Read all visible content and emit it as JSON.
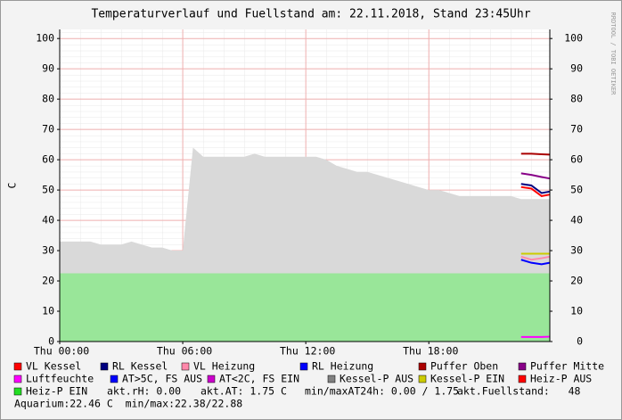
{
  "chart_data": {
    "type": "line",
    "title": "Temperaturverlauf und Fuellstand am: 22.11.2018, Stand 23:45Uhr",
    "y_label": "C",
    "watermark": "RRDTOOL / TOBI OETIKER",
    "x": [
      0,
      0.5,
      1,
      1.5,
      2,
      2.5,
      3,
      3.5,
      4,
      4.5,
      5,
      5.5,
      6,
      6.5,
      7,
      7.5,
      8,
      8.5,
      9,
      9.5,
      10,
      10.5,
      11,
      11.5,
      12,
      12.5,
      13,
      13.5,
      14,
      14.5,
      15,
      15.5,
      16,
      16.5,
      17,
      17.5,
      18,
      18.5,
      19,
      19.5,
      20,
      20.5,
      21,
      21.5,
      22,
      22.5,
      23,
      23.5,
      23.9
    ],
    "xlim": [
      0,
      23.9
    ],
    "xticks": [
      {
        "value": 0,
        "label": "Thu 00:00"
      },
      {
        "value": 6,
        "label": "Thu 06:00"
      },
      {
        "value": 12,
        "label": "Thu 12:00"
      },
      {
        "value": 18,
        "label": "Thu 18:00"
      }
    ],
    "ylim": [
      0,
      103
    ],
    "yticks": [
      0,
      10,
      20,
      30,
      40,
      50,
      60,
      70,
      80,
      90,
      100
    ],
    "y2lim": [
      0,
      103
    ],
    "y2ticks": [
      0,
      10,
      20,
      30,
      40,
      50,
      60,
      70,
      80,
      90,
      100
    ],
    "grid": true,
    "series": [
      {
        "name": "VL Kessel",
        "color": "#ff0000",
        "values": [
          null,
          null,
          null,
          null,
          null,
          null,
          null,
          null,
          null,
          null,
          null,
          null,
          null,
          null,
          null,
          null,
          null,
          null,
          null,
          null,
          null,
          null,
          null,
          null,
          null,
          null,
          null,
          null,
          null,
          null,
          null,
          null,
          null,
          null,
          null,
          null,
          null,
          null,
          null,
          null,
          null,
          null,
          null,
          null,
          null,
          51,
          50.5,
          48,
          48.5
        ]
      },
      {
        "name": "RL Kessel",
        "color": "#000080",
        "values": [
          null,
          null,
          null,
          null,
          null,
          null,
          null,
          null,
          null,
          null,
          null,
          null,
          null,
          null,
          null,
          null,
          null,
          null,
          null,
          null,
          null,
          null,
          null,
          null,
          null,
          null,
          null,
          null,
          null,
          null,
          null,
          null,
          null,
          null,
          null,
          null,
          null,
          null,
          null,
          null,
          null,
          null,
          null,
          null,
          null,
          52,
          51.5,
          49,
          49.5
        ]
      },
      {
        "name": "VL Heizung",
        "color": "#ff88aa",
        "values": [
          null,
          null,
          null,
          null,
          null,
          null,
          null,
          null,
          null,
          null,
          null,
          null,
          null,
          null,
          null,
          null,
          null,
          null,
          null,
          null,
          null,
          null,
          null,
          null,
          null,
          null,
          null,
          null,
          null,
          null,
          null,
          null,
          null,
          null,
          null,
          null,
          null,
          null,
          null,
          null,
          null,
          null,
          null,
          null,
          null,
          28,
          27,
          27.5,
          28
        ]
      },
      {
        "name": "RL Heizung",
        "color": "#0000ff",
        "values": [
          null,
          null,
          null,
          null,
          null,
          null,
          null,
          null,
          null,
          null,
          null,
          null,
          null,
          null,
          null,
          null,
          null,
          null,
          null,
          null,
          null,
          null,
          null,
          null,
          null,
          null,
          null,
          null,
          null,
          null,
          null,
          null,
          null,
          null,
          null,
          null,
          null,
          null,
          null,
          null,
          null,
          null,
          null,
          null,
          null,
          27,
          26,
          25.5,
          26
        ]
      },
      {
        "name": "Puffer Oben",
        "color": "#aa0000",
        "values": [
          null,
          null,
          null,
          null,
          null,
          null,
          null,
          null,
          null,
          null,
          null,
          null,
          null,
          null,
          null,
          null,
          null,
          null,
          null,
          null,
          null,
          null,
          null,
          null,
          null,
          null,
          null,
          null,
          null,
          null,
          null,
          null,
          null,
          null,
          null,
          null,
          null,
          null,
          null,
          null,
          null,
          null,
          null,
          null,
          null,
          62,
          62,
          61.8,
          61.7
        ]
      },
      {
        "name": "Puffer Mitte",
        "color": "#880088",
        "values": [
          null,
          null,
          null,
          null,
          null,
          null,
          null,
          null,
          null,
          null,
          null,
          null,
          null,
          null,
          null,
          null,
          null,
          null,
          null,
          null,
          null,
          null,
          null,
          null,
          null,
          null,
          null,
          null,
          null,
          null,
          null,
          null,
          null,
          null,
          null,
          null,
          null,
          null,
          null,
          null,
          null,
          null,
          null,
          null,
          null,
          55.5,
          55,
          54.3,
          53.8
        ]
      },
      {
        "name": "Luftfeuchte",
        "color": "#ff00ff",
        "values": [
          null,
          null,
          null,
          null,
          null,
          null,
          null,
          null,
          null,
          null,
          null,
          null,
          null,
          null,
          null,
          null,
          null,
          null,
          null,
          null,
          null,
          null,
          null,
          null,
          null,
          null,
          null,
          null,
          null,
          null,
          null,
          null,
          null,
          null,
          null,
          null,
          null,
          null,
          null,
          null,
          null,
          null,
          null,
          null,
          null,
          1.5,
          1.5,
          1.5,
          1.6
        ]
      },
      {
        "name": "AT>5C, FS AUS",
        "color": "#0000ff"
      },
      {
        "name": "AT<2C, FS EIN",
        "color": "#cc00cc"
      },
      {
        "name": "Kessel-P AUS",
        "color": "#808080",
        "style": "area",
        "fill": "#d9d9d9",
        "values": [
          33,
          33,
          33,
          33,
          32,
          32,
          32,
          33,
          32,
          31,
          31,
          30,
          30,
          64,
          61,
          61,
          61,
          61,
          61,
          62,
          61,
          61,
          61,
          61,
          61,
          61,
          60,
          58,
          57,
          56,
          56,
          55,
          54,
          53,
          52,
          51,
          50,
          50,
          49,
          48,
          48,
          48,
          48,
          48,
          48,
          47,
          47,
          47,
          47
        ]
      },
      {
        "name": "Kessel-P EIN",
        "color": "#cccc00",
        "values": [
          null,
          null,
          null,
          null,
          null,
          null,
          null,
          null,
          null,
          null,
          null,
          null,
          null,
          null,
          null,
          null,
          null,
          null,
          null,
          null,
          null,
          null,
          null,
          null,
          null,
          null,
          null,
          null,
          null,
          null,
          null,
          null,
          null,
          null,
          null,
          null,
          null,
          null,
          null,
          null,
          null,
          null,
          null,
          null,
          null,
          29,
          29,
          29,
          29
        ]
      },
      {
        "name": "Heiz-P AUS",
        "color": "#ff0000"
      },
      {
        "name": "Heiz-P EIN",
        "color": "#22dd22",
        "style": "area",
        "fill": "#99e699",
        "values": [
          22.5,
          22.5,
          22.5,
          22.5,
          22.5,
          22.5,
          22.5,
          22.5,
          22.5,
          22.5,
          22.5,
          22.5,
          22.5,
          22.5,
          22.5,
          22.5,
          22.5,
          22.5,
          22.5,
          22.5,
          22.5,
          22.5,
          22.5,
          22.5,
          22.5,
          22.5,
          22.5,
          22.5,
          22.5,
          22.5,
          22.5,
          22.5,
          22.5,
          22.5,
          22.5,
          22.5,
          22.5,
          22.5,
          22.5,
          22.5,
          22.5,
          22.5,
          22.5,
          22.5,
          22.5,
          22.5,
          22.5,
          22.5,
          22.5
        ]
      }
    ],
    "notes": [
      "akt.rH: 0.00",
      "akt.AT: 1.75 C",
      "min/maxAT24h: 0.00 / 1.75",
      "akt.Fuellstand:   48"
    ],
    "footer": "Aquarium:22.46 C  min/max:22.38/22.88"
  }
}
